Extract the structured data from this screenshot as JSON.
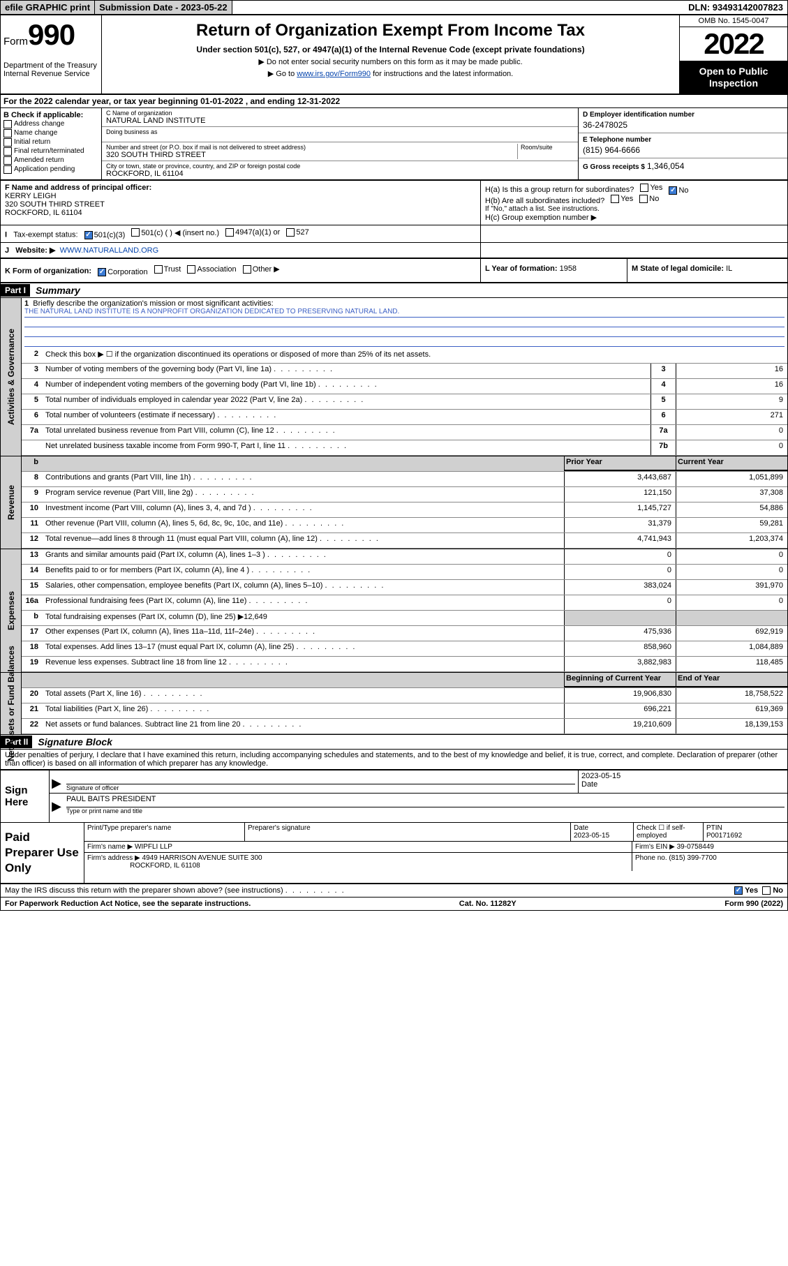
{
  "topbar": {
    "efile": "efile GRAPHIC print",
    "subdate_label": "Submission Date - 2023-05-22",
    "dln": "DLN: 93493142007823"
  },
  "header": {
    "form_prefix": "Form",
    "form_number": "990",
    "dept": "Department of the Treasury\nInternal Revenue Service",
    "title": "Return of Organization Exempt From Income Tax",
    "subtitle": "Under section 501(c), 527, or 4947(a)(1) of the Internal Revenue Code (except private foundations)",
    "note1": "▶ Do not enter social security numbers on this form as it may be made public.",
    "note2_pre": "▶ Go to ",
    "note2_link": "www.irs.gov/Form990",
    "note2_post": " for instructions and the latest information.",
    "omb": "OMB No. 1545-0047",
    "year": "2022",
    "open": "Open to Public Inspection"
  },
  "A": "For the 2022 calendar year, or tax year beginning 01-01-2022   , and ending 12-31-2022",
  "B": {
    "label": "B Check if applicable:",
    "items": [
      "Address change",
      "Name change",
      "Initial return",
      "Final return/terminated",
      "Amended return",
      "Application pending"
    ]
  },
  "C": {
    "name_label": "C Name of organization",
    "name": "NATURAL LAND INSTITUTE",
    "dba_label": "Doing business as",
    "dba": "",
    "addr_label": "Number and street (or P.O. box if mail is not delivered to street address)",
    "room_label": "Room/suite",
    "addr": "320 SOUTH THIRD STREET",
    "city_label": "City or town, state or province, country, and ZIP or foreign postal code",
    "city": "ROCKFORD, IL  61104"
  },
  "D": {
    "label": "D Employer identification number",
    "value": "36-2478025"
  },
  "E": {
    "label": "E Telephone number",
    "value": "(815) 964-6666"
  },
  "G": {
    "label": "G Gross receipts $",
    "value": "1,346,054"
  },
  "F": {
    "label": "F  Name and address of principal officer:",
    "name": "KERRY LEIGH",
    "addr1": "320 SOUTH THIRD STREET",
    "addr2": "ROCKFORD, IL  61104"
  },
  "H": {
    "a": "H(a)  Is this a group return for subordinates?",
    "b": "H(b)  Are all subordinates included?",
    "b_note": "If \"No,\" attach a list. See instructions.",
    "c": "H(c)  Group exemption number ▶",
    "yes": "Yes",
    "no": "No"
  },
  "I": {
    "label": "Tax-exempt status:",
    "opt1": "501(c)(3)",
    "opt2": "501(c) (  ) ◀ (insert no.)",
    "opt3": "4947(a)(1) or",
    "opt4": "527"
  },
  "J": {
    "label": "Website: ▶",
    "value": "WWW.NATURALLAND.ORG"
  },
  "K": {
    "label": "K Form of organization:",
    "opts": [
      "Corporation",
      "Trust",
      "Association",
      "Other ▶"
    ]
  },
  "L": {
    "label": "L Year of formation:",
    "value": "1958"
  },
  "M": {
    "label": "M State of legal domicile:",
    "value": "IL"
  },
  "PartI": {
    "tag": "Part I",
    "title": "Summary"
  },
  "mission": {
    "label": "Briefly describe the organization's mission or most significant activities:",
    "text": "THE NATURAL LAND INSTITUTE IS A NONPROFIT ORGANIZATION DEDICATED TO PRESERVING NATURAL LAND."
  },
  "lines_gov": [
    {
      "n": "2",
      "t": "Check this box ▶ ☐  if the organization discontinued its operations or disposed of more than 25% of its net assets.",
      "b": "",
      "v": ""
    },
    {
      "n": "3",
      "t": "Number of voting members of the governing body (Part VI, line 1a)",
      "b": "3",
      "v": "16"
    },
    {
      "n": "4",
      "t": "Number of independent voting members of the governing body (Part VI, line 1b)",
      "b": "4",
      "v": "16"
    },
    {
      "n": "5",
      "t": "Total number of individuals employed in calendar year 2022 (Part V, line 2a)",
      "b": "5",
      "v": "9"
    },
    {
      "n": "6",
      "t": "Total number of volunteers (estimate if necessary)",
      "b": "6",
      "v": "271"
    },
    {
      "n": "7a",
      "t": "Total unrelated business revenue from Part VIII, column (C), line 12",
      "b": "7a",
      "v": "0"
    },
    {
      "n": "",
      "t": "Net unrelated business taxable income from Form 990-T, Part I, line 11",
      "b": "7b",
      "v": "0"
    }
  ],
  "col_hdrs": {
    "prior": "Prior Year",
    "current": "Current Year"
  },
  "lines_rev": [
    {
      "n": "8",
      "t": "Contributions and grants (Part VIII, line 1h)",
      "p": "3,443,687",
      "c": "1,051,899"
    },
    {
      "n": "9",
      "t": "Program service revenue (Part VIII, line 2g)",
      "p": "121,150",
      "c": "37,308"
    },
    {
      "n": "10",
      "t": "Investment income (Part VIII, column (A), lines 3, 4, and 7d )",
      "p": "1,145,727",
      "c": "54,886"
    },
    {
      "n": "11",
      "t": "Other revenue (Part VIII, column (A), lines 5, 6d, 8c, 9c, 10c, and 11e)",
      "p": "31,379",
      "c": "59,281"
    },
    {
      "n": "12",
      "t": "Total revenue—add lines 8 through 11 (must equal Part VIII, column (A), line 12)",
      "p": "4,741,943",
      "c": "1,203,374"
    }
  ],
  "lines_exp": [
    {
      "n": "13",
      "t": "Grants and similar amounts paid (Part IX, column (A), lines 1–3 )",
      "p": "0",
      "c": "0"
    },
    {
      "n": "14",
      "t": "Benefits paid to or for members (Part IX, column (A), line 4 )",
      "p": "0",
      "c": "0"
    },
    {
      "n": "15",
      "t": "Salaries, other compensation, employee benefits (Part IX, column (A), lines 5–10)",
      "p": "383,024",
      "c": "391,970"
    },
    {
      "n": "16a",
      "t": "Professional fundraising fees (Part IX, column (A), line 11e)",
      "p": "0",
      "c": "0"
    },
    {
      "n": "b",
      "t": "Total fundraising expenses (Part IX, column (D), line 25) ▶12,649",
      "p": "",
      "c": "",
      "grey": true
    },
    {
      "n": "17",
      "t": "Other expenses (Part IX, column (A), lines 11a–11d, 11f–24e)",
      "p": "475,936",
      "c": "692,919"
    },
    {
      "n": "18",
      "t": "Total expenses. Add lines 13–17 (must equal Part IX, column (A), line 25)",
      "p": "858,960",
      "c": "1,084,889"
    },
    {
      "n": "19",
      "t": "Revenue less expenses. Subtract line 18 from line 12",
      "p": "3,882,983",
      "c": "118,485"
    }
  ],
  "col_hdrs2": {
    "beg": "Beginning of Current Year",
    "end": "End of Year"
  },
  "lines_net": [
    {
      "n": "20",
      "t": "Total assets (Part X, line 16)",
      "p": "19,906,830",
      "c": "18,758,522"
    },
    {
      "n": "21",
      "t": "Total liabilities (Part X, line 26)",
      "p": "696,221",
      "c": "619,369"
    },
    {
      "n": "22",
      "t": "Net assets or fund balances. Subtract line 21 from line 20",
      "p": "19,210,609",
      "c": "18,139,153"
    }
  ],
  "sidelabels": {
    "gov": "Activities & Governance",
    "rev": "Revenue",
    "exp": "Expenses",
    "net": "Net Assets or Fund Balances"
  },
  "PartII": {
    "tag": "Part II",
    "title": "Signature Block"
  },
  "perjury": "Under penalties of perjury, I declare that I have examined this return, including accompanying schedules and statements, and to the best of my knowledge and belief, it is true, correct, and complete. Declaration of preparer (other than officer) is based on all information of which preparer has any knowledge.",
  "sign": {
    "here": "Sign Here",
    "sig_label": "Signature of officer",
    "date_label": "Date",
    "date": "2023-05-15",
    "name": "PAUL BAITS  PRESIDENT",
    "name_label": "Type or print name and title"
  },
  "prep": {
    "label": "Paid Preparer Use Only",
    "h1": "Print/Type preparer's name",
    "h2": "Preparer's signature",
    "h3": "Date",
    "h4": "Check ☐ if self-employed",
    "h5": "PTIN",
    "date": "2023-05-15",
    "ptin": "P00171692",
    "firm_label": "Firm's name    ▶",
    "firm": "WIPFLI LLP",
    "ein_label": "Firm's EIN ▶",
    "ein": "39-0758449",
    "addr_label": "Firm's address ▶",
    "addr1": "4949 HARRISON AVENUE SUITE 300",
    "addr2": "ROCKFORD, IL  61108",
    "phone_label": "Phone no.",
    "phone": "(815) 399-7700"
  },
  "lastline": {
    "q": "May the IRS discuss this return with the preparer shown above? (see instructions)",
    "yes": "Yes",
    "no": "No"
  },
  "footer": {
    "left": "For Paperwork Reduction Act Notice, see the separate instructions.",
    "mid": "Cat. No. 11282Y",
    "right": "Form 990 (2022)"
  }
}
